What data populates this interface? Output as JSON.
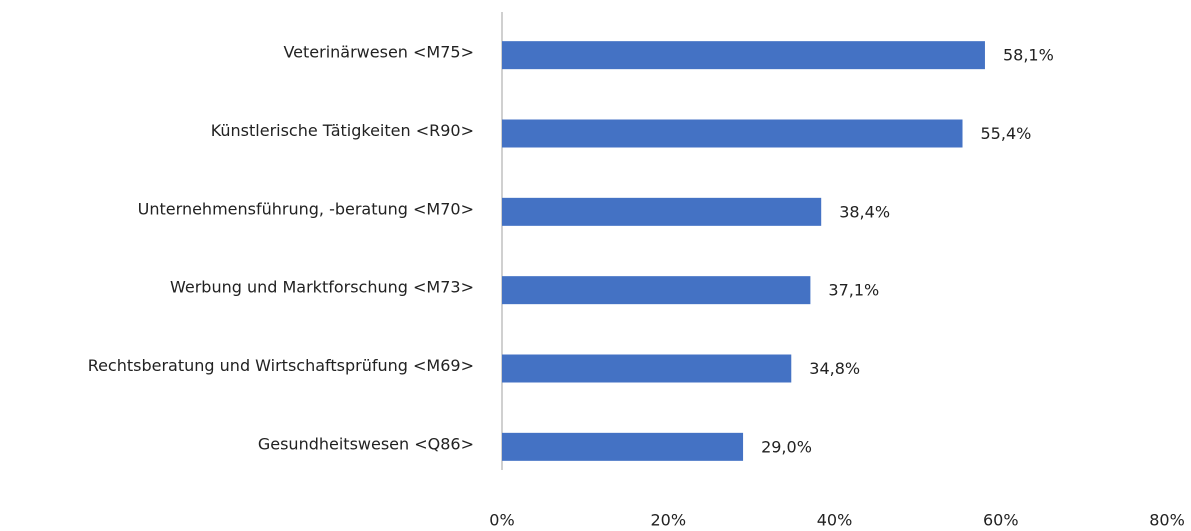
{
  "chart_data": {
    "type": "bar",
    "orientation": "horizontal",
    "categories": [
      "Veterinärwesen <M75>",
      "Künstlerische Tätigkeiten <R90>",
      "Unternehmensführung, -beratung <M70>",
      "Werbung und Marktforschung <M73>",
      "Rechtsberatung und Wirtschaftsprüfung <M69>",
      "Gesundheitswesen <Q86>"
    ],
    "values": [
      58.1,
      55.4,
      38.4,
      37.1,
      34.8,
      29.0
    ],
    "value_labels": [
      "58,1%",
      "55,4%",
      "38,4%",
      "37,1%",
      "34,8%",
      "29,0%"
    ],
    "color": "#4472c4",
    "xlim": [
      0,
      80
    ],
    "xticks": [
      {
        "value": 0,
        "label": "0%"
      },
      {
        "value": 20,
        "label": "20%"
      },
      {
        "value": 40,
        "label": "40%"
      },
      {
        "value": 60,
        "label": "60%"
      },
      {
        "value": 80,
        "label": "80%"
      }
    ],
    "grid": false
  }
}
